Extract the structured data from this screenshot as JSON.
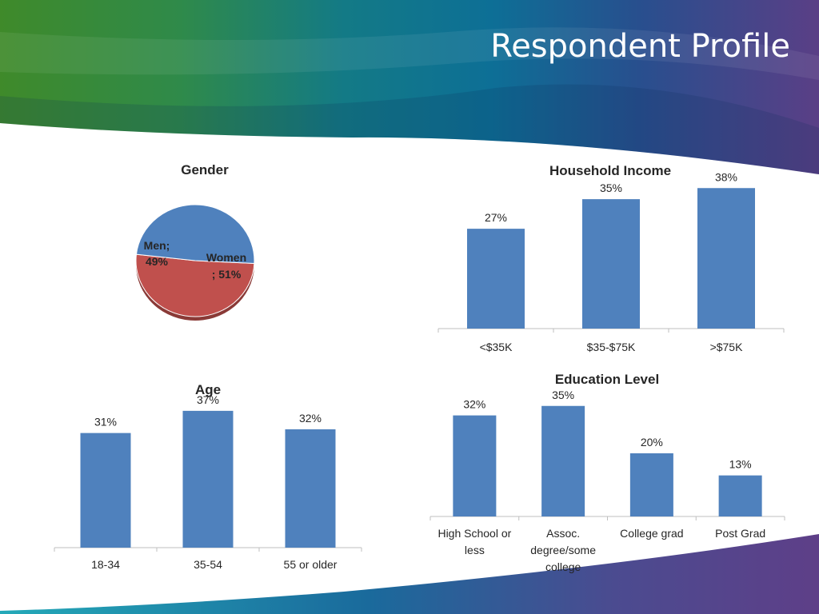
{
  "page": {
    "title": "Respondent Profile",
    "colors": {
      "bar": "#4f81bd",
      "men": "#4f81bd",
      "women": "#c0504d",
      "axis": "#bfbfbf",
      "text": "#262626"
    }
  },
  "chart_data": [
    {
      "id": "gender",
      "type": "pie",
      "title": "Gender",
      "categories": [
        "Men",
        "Women"
      ],
      "values": [
        49,
        51
      ],
      "labels": [
        [
          "Men;",
          "49%"
        ],
        [
          "Women",
          "; 51%"
        ]
      ],
      "colors": [
        "#4f81bd",
        "#c0504d"
      ]
    },
    {
      "id": "income",
      "type": "bar",
      "title": "Household Income",
      "categories": [
        [
          "<$35K"
        ],
        [
          "$35-$75K"
        ],
        [
          ">$75K"
        ]
      ],
      "values": [
        27,
        35,
        38
      ],
      "value_labels": [
        "27%",
        "35%",
        "38%"
      ],
      "ylim": [
        0,
        40
      ]
    },
    {
      "id": "age",
      "type": "bar",
      "title": "Age",
      "categories": [
        [
          "18-34"
        ],
        [
          "35-54"
        ],
        [
          "55 or older"
        ]
      ],
      "values": [
        31,
        37,
        32
      ],
      "value_labels": [
        "31%",
        "37%",
        "32%"
      ],
      "ylim": [
        0,
        40
      ]
    },
    {
      "id": "education",
      "type": "bar",
      "title": "Education Level",
      "categories": [
        [
          "High School or",
          "less"
        ],
        [
          "Assoc.",
          "degree/some",
          "college"
        ],
        [
          "College grad"
        ],
        [
          "Post Grad"
        ]
      ],
      "values": [
        32,
        35,
        20,
        13
      ],
      "value_labels": [
        "32%",
        "35%",
        "20%",
        "13%"
      ],
      "ylim": [
        0,
        40
      ]
    }
  ]
}
